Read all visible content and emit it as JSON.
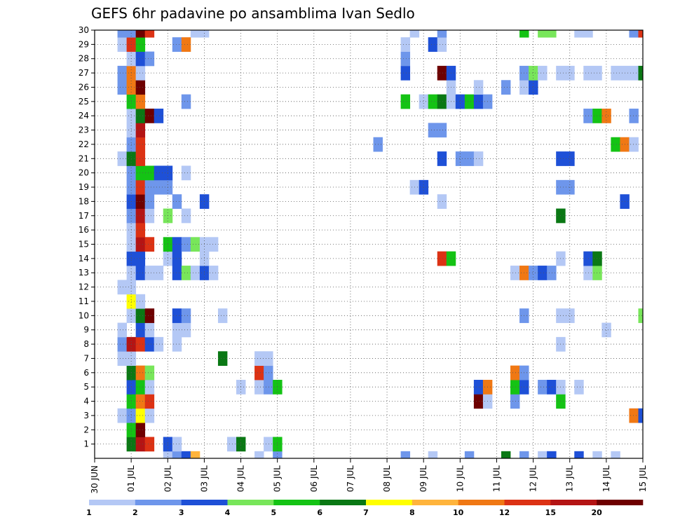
{
  "chart_data": {
    "type": "heatmap",
    "title": "GEFS 6hr padavine po ansamblima Ivan Sedlo",
    "xlabel": "",
    "ylabel": "",
    "x_ticks": [
      "30 JUN",
      "01 JUL",
      "02 JUL",
      "03 JUL",
      "04 JUL",
      "05 JUL",
      "06 JUL",
      "07 JUL",
      "08 JUL",
      "09 JUL",
      "10 JUL",
      "11 JUL",
      "12 JUL",
      "13 JUL",
      "14 JUL",
      "15 JUL"
    ],
    "y_ticks": [
      1,
      2,
      3,
      4,
      5,
      6,
      7,
      8,
      9,
      10,
      11,
      12,
      13,
      14,
      15,
      16,
      17,
      18,
      19,
      20,
      21,
      22,
      23,
      24,
      25,
      26,
      27,
      28,
      29,
      30
    ],
    "steps_per_day": 4,
    "x_range_steps": [
      0,
      60
    ],
    "y_range": [
      0,
      30
    ],
    "grid": true,
    "colorbar": {
      "levels": [
        "1",
        "2",
        "3",
        "4",
        "5",
        "6",
        "7",
        "8",
        "10",
        "12",
        "15",
        "20"
      ],
      "colors": [
        "#b4c8f5",
        "#6e96eb",
        "#1e50d7",
        "#78e65a",
        "#14c314",
        "#0a7814",
        "#ffff00",
        "#ffb43c",
        "#f07814",
        "#dc3214",
        "#b41414",
        "#6e0000"
      ],
      "placement": "bottom"
    },
    "cells": [
      [
        0,
        8,
        0
      ],
      [
        0,
        9,
        1
      ],
      [
        0,
        10,
        2
      ],
      [
        0,
        11,
        7
      ],
      [
        0,
        18,
        0
      ],
      [
        0,
        20,
        1
      ],
      [
        0,
        34,
        1
      ],
      [
        0,
        37,
        0
      ],
      [
        0,
        41,
        1
      ],
      [
        0,
        45,
        5
      ],
      [
        0,
        47,
        1
      ],
      [
        0,
        49,
        0
      ],
      [
        0,
        50,
        2
      ],
      [
        0,
        53,
        2
      ],
      [
        0,
        55,
        0
      ],
      [
        0,
        57,
        0
      ],
      [
        1,
        4,
        5
      ],
      [
        1,
        5,
        10
      ],
      [
        1,
        6,
        9
      ],
      [
        1,
        8,
        2
      ],
      [
        1,
        9,
        0
      ],
      [
        1,
        15,
        0
      ],
      [
        1,
        16,
        5
      ],
      [
        1,
        19,
        0
      ],
      [
        1,
        20,
        4
      ],
      [
        2,
        4,
        4
      ],
      [
        2,
        5,
        11
      ],
      [
        3,
        3,
        0
      ],
      [
        3,
        4,
        1
      ],
      [
        3,
        5,
        6
      ],
      [
        3,
        6,
        0
      ],
      [
        3,
        59,
        8
      ],
      [
        3,
        60,
        2
      ],
      [
        4,
        4,
        4
      ],
      [
        4,
        5,
        8
      ],
      [
        4,
        6,
        9
      ],
      [
        4,
        42,
        11
      ],
      [
        4,
        43,
        0
      ],
      [
        4,
        46,
        1
      ],
      [
        4,
        51,
        4
      ],
      [
        5,
        4,
        2
      ],
      [
        5,
        5,
        4
      ],
      [
        5,
        6,
        0
      ],
      [
        5,
        16,
        0
      ],
      [
        5,
        18,
        0
      ],
      [
        5,
        19,
        1
      ],
      [
        5,
        20,
        4
      ],
      [
        5,
        42,
        2
      ],
      [
        5,
        43,
        8
      ],
      [
        5,
        46,
        4
      ],
      [
        5,
        47,
        2
      ],
      [
        5,
        49,
        1
      ],
      [
        5,
        50,
        2
      ],
      [
        5,
        51,
        0
      ],
      [
        5,
        53,
        0
      ],
      [
        6,
        4,
        5
      ],
      [
        6,
        5,
        8
      ],
      [
        6,
        6,
        3
      ],
      [
        6,
        18,
        9
      ],
      [
        6,
        19,
        1
      ],
      [
        6,
        46,
        8
      ],
      [
        6,
        47,
        1
      ],
      [
        7,
        3,
        0
      ],
      [
        7,
        4,
        0
      ],
      [
        7,
        14,
        5
      ],
      [
        7,
        18,
        0
      ],
      [
        7,
        19,
        0
      ],
      [
        8,
        3,
        1
      ],
      [
        8,
        4,
        10
      ],
      [
        8,
        5,
        9
      ],
      [
        8,
        6,
        2
      ],
      [
        8,
        7,
        0
      ],
      [
        8,
        9,
        0
      ],
      [
        8,
        51,
        0
      ],
      [
        9,
        3,
        0
      ],
      [
        9,
        5,
        2
      ],
      [
        9,
        6,
        0
      ],
      [
        9,
        9,
        0
      ],
      [
        9,
        10,
        0
      ],
      [
        9,
        56,
        0
      ],
      [
        10,
        4,
        0
      ],
      [
        10,
        5,
        5
      ],
      [
        10,
        6,
        11
      ],
      [
        10,
        9,
        2
      ],
      [
        10,
        10,
        1
      ],
      [
        10,
        14,
        0
      ],
      [
        10,
        47,
        1
      ],
      [
        10,
        51,
        0
      ],
      [
        10,
        52,
        0
      ],
      [
        10,
        60,
        3
      ],
      [
        11,
        4,
        6
      ],
      [
        11,
        5,
        0
      ],
      [
        12,
        3,
        0
      ],
      [
        12,
        4,
        0
      ],
      [
        13,
        4,
        0
      ],
      [
        13,
        5,
        2
      ],
      [
        13,
        6,
        0
      ],
      [
        13,
        7,
        0
      ],
      [
        13,
        9,
        2
      ],
      [
        13,
        10,
        3
      ],
      [
        13,
        11,
        0
      ],
      [
        13,
        12,
        2
      ],
      [
        13,
        13,
        0
      ],
      [
        13,
        46,
        0
      ],
      [
        13,
        47,
        8
      ],
      [
        13,
        48,
        1
      ],
      [
        13,
        49,
        2
      ],
      [
        13,
        50,
        1
      ],
      [
        13,
        54,
        0
      ],
      [
        13,
        55,
        3
      ],
      [
        14,
        4,
        2
      ],
      [
        14,
        5,
        2
      ],
      [
        14,
        8,
        0
      ],
      [
        14,
        9,
        2
      ],
      [
        14,
        12,
        0
      ],
      [
        14,
        38,
        9
      ],
      [
        14,
        39,
        4
      ],
      [
        14,
        51,
        0
      ],
      [
        14,
        54,
        2
      ],
      [
        14,
        55,
        5
      ],
      [
        15,
        4,
        0
      ],
      [
        15,
        5,
        10
      ],
      [
        15,
        6,
        9
      ],
      [
        15,
        8,
        4
      ],
      [
        15,
        9,
        2
      ],
      [
        15,
        10,
        1
      ],
      [
        15,
        11,
        3
      ],
      [
        15,
        12,
        0
      ],
      [
        15,
        13,
        0
      ],
      [
        16,
        4,
        0
      ],
      [
        16,
        5,
        9
      ],
      [
        17,
        4,
        1
      ],
      [
        17,
        5,
        10
      ],
      [
        17,
        6,
        0
      ],
      [
        17,
        8,
        3
      ],
      [
        17,
        10,
        0
      ],
      [
        17,
        51,
        5
      ],
      [
        18,
        4,
        2
      ],
      [
        18,
        5,
        11
      ],
      [
        18,
        6,
        1
      ],
      [
        18,
        9,
        1
      ],
      [
        18,
        12,
        2
      ],
      [
        18,
        38,
        0
      ],
      [
        18,
        58,
        2
      ],
      [
        19,
        4,
        1
      ],
      [
        19,
        5,
        9
      ],
      [
        19,
        6,
        1
      ],
      [
        19,
        7,
        1
      ],
      [
        19,
        8,
        1
      ],
      [
        19,
        35,
        0
      ],
      [
        19,
        36,
        2
      ],
      [
        19,
        51,
        1
      ],
      [
        19,
        52,
        1
      ],
      [
        20,
        4,
        1
      ],
      [
        20,
        5,
        4
      ],
      [
        20,
        6,
        4
      ],
      [
        20,
        7,
        2
      ],
      [
        20,
        8,
        2
      ],
      [
        20,
        10,
        0
      ],
      [
        21,
        3,
        0
      ],
      [
        21,
        4,
        5
      ],
      [
        21,
        5,
        9
      ],
      [
        21,
        38,
        2
      ],
      [
        21,
        40,
        1
      ],
      [
        21,
        41,
        1
      ],
      [
        21,
        42,
        0
      ],
      [
        21,
        51,
        2
      ],
      [
        21,
        52,
        2
      ],
      [
        22,
        4,
        1
      ],
      [
        22,
        5,
        9
      ],
      [
        22,
        31,
        1
      ],
      [
        22,
        57,
        4
      ],
      [
        22,
        58,
        8
      ],
      [
        22,
        59,
        0
      ],
      [
        23,
        4,
        0
      ],
      [
        23,
        5,
        10
      ],
      [
        23,
        37,
        1
      ],
      [
        23,
        38,
        1
      ],
      [
        24,
        4,
        0
      ],
      [
        24,
        5,
        5
      ],
      [
        24,
        6,
        11
      ],
      [
        24,
        7,
        2
      ],
      [
        24,
        54,
        1
      ],
      [
        24,
        55,
        4
      ],
      [
        24,
        56,
        8
      ],
      [
        24,
        59,
        1
      ],
      [
        25,
        4,
        4
      ],
      [
        25,
        5,
        8
      ],
      [
        25,
        10,
        1
      ],
      [
        25,
        34,
        4
      ],
      [
        25,
        36,
        0
      ],
      [
        25,
        37,
        4
      ],
      [
        25,
        38,
        5
      ],
      [
        25,
        39,
        0
      ],
      [
        25,
        40,
        2
      ],
      [
        25,
        41,
        4
      ],
      [
        25,
        42,
        2
      ],
      [
        25,
        43,
        1
      ],
      [
        26,
        3,
        1
      ],
      [
        26,
        4,
        8
      ],
      [
        26,
        5,
        11
      ],
      [
        26,
        39,
        0
      ],
      [
        26,
        42,
        0
      ],
      [
        26,
        45,
        1
      ],
      [
        26,
        47,
        0
      ],
      [
        26,
        48,
        2
      ],
      [
        27,
        3,
        1
      ],
      [
        27,
        4,
        8
      ],
      [
        27,
        5,
        0
      ],
      [
        27,
        34,
        2
      ],
      [
        27,
        38,
        11
      ],
      [
        27,
        39,
        2
      ],
      [
        27,
        47,
        1
      ],
      [
        27,
        48,
        3
      ],
      [
        27,
        49,
        0
      ],
      [
        27,
        51,
        0
      ],
      [
        27,
        52,
        0
      ],
      [
        27,
        54,
        0
      ],
      [
        27,
        55,
        0
      ],
      [
        27,
        57,
        0
      ],
      [
        27,
        58,
        0
      ],
      [
        27,
        59,
        0
      ],
      [
        27,
        60,
        5
      ],
      [
        28,
        4,
        0
      ],
      [
        28,
        5,
        2
      ],
      [
        28,
        6,
        1
      ],
      [
        28,
        34,
        1
      ],
      [
        29,
        3,
        0
      ],
      [
        29,
        4,
        9
      ],
      [
        29,
        5,
        4
      ],
      [
        29,
        9,
        1
      ],
      [
        29,
        10,
        8
      ],
      [
        29,
        34,
        0
      ],
      [
        29,
        37,
        2
      ],
      [
        29,
        38,
        0
      ],
      [
        30,
        3,
        1
      ],
      [
        30,
        4,
        1
      ],
      [
        30,
        5,
        11
      ],
      [
        30,
        6,
        9
      ],
      [
        30,
        11,
        0
      ],
      [
        30,
        12,
        0
      ],
      [
        30,
        35,
        0
      ],
      [
        30,
        38,
        1
      ],
      [
        30,
        47,
        4
      ],
      [
        30,
        49,
        3
      ],
      [
        30,
        50,
        3
      ],
      [
        30,
        53,
        0
      ],
      [
        30,
        54,
        0
      ],
      [
        30,
        59,
        1
      ],
      [
        30,
        60,
        9
      ]
    ]
  }
}
